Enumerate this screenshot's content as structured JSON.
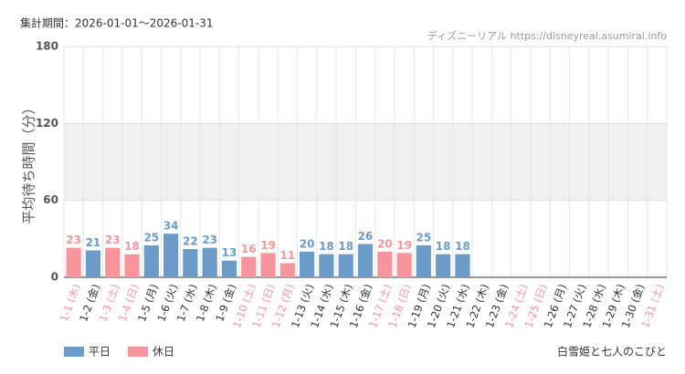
{
  "chart_data": {
    "type": "bar",
    "subtitle": "集計期間：2026-01-01～2026-01-31",
    "source": "ディズニーリアル https://disneyreal.asumirai.info",
    "ylabel": "平均待ち時間（分）",
    "footer": "白雪姫と七人のこびと",
    "categories": [
      "1-1 (木)",
      "1-2 (金)",
      "1-3 (土)",
      "1-4 (日)",
      "1-5 (月)",
      "1-6 (火)",
      "1-7 (水)",
      "1-8 (木)",
      "1-9 (金)",
      "1-10 (土)",
      "1-11 (日)",
      "1-12 (月)",
      "1-13 (火)",
      "1-14 (水)",
      "1-15 (木)",
      "1-16 (金)",
      "1-17 (土)",
      "1-18 (日)",
      "1-19 (月)",
      "1-20 (火)",
      "1-21 (水)",
      "1-22 (木)",
      "1-23 (金)",
      "1-24 (土)",
      "1-25 (日)",
      "1-26 (月)",
      "1-27 (火)",
      "1-28 (水)",
      "1-29 (木)",
      "1-30 (金)",
      "1-31 (土)"
    ],
    "values": [
      23,
      21,
      23,
      18,
      25,
      34,
      22,
      23,
      13,
      16,
      19,
      11,
      20,
      18,
      18,
      26,
      20,
      19,
      25,
      18,
      18,
      null,
      null,
      null,
      null,
      null,
      null,
      null,
      null,
      null,
      null
    ],
    "bar_colors": [
      "#f8959c",
      "#6b9bc9",
      "#f8959c",
      "#f8959c",
      "#6b9bc9",
      "#6b9bc9",
      "#6b9bc9",
      "#6b9bc9",
      "#6b9bc9",
      "#f8959c",
      "#f8959c",
      "#f8959c",
      "#6b9bc9",
      "#6b9bc9",
      "#6b9bc9",
      "#6b9bc9",
      "#f8959c",
      "#f8959c",
      "#6b9bc9",
      "#6b9bc9",
      "#6b9bc9",
      "#6b9bc9",
      "#6b9bc9",
      "#f8959c",
      "#f8959c",
      "#6b9bc9",
      "#6b9bc9",
      "#6b9bc9",
      "#6b9bc9",
      "#6b9bc9",
      "#f8959c"
    ],
    "legend": [
      {
        "name": "平日",
        "color": "#6b9bc9"
      },
      {
        "name": "休日",
        "color": "#f8959c"
      }
    ],
    "ylim": [
      0,
      180
    ],
    "yticks": [
      0,
      60,
      120,
      180
    ],
    "band": [
      60,
      120
    ],
    "grid": true
  }
}
